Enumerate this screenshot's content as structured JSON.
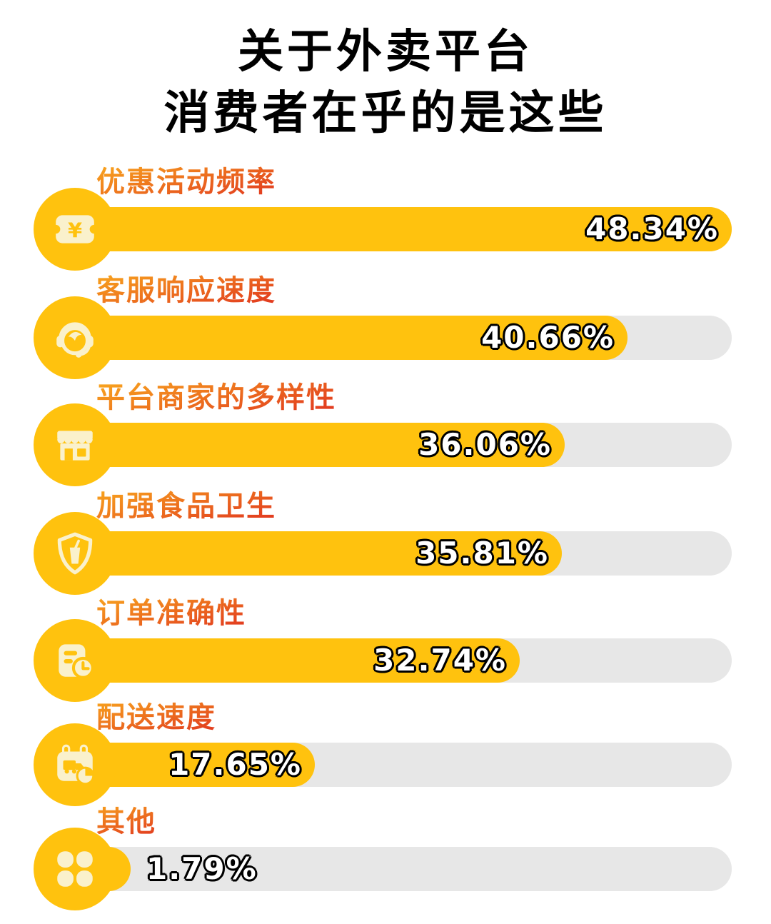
{
  "title": {
    "line1": "关于外卖平台",
    "line2": "消费者在乎的是这些"
  },
  "chart_data": {
    "type": "bar",
    "orientation": "horizontal",
    "title": "关于外卖平台 消费者在乎的是这些",
    "categories": [
      "优惠活动频率",
      "客服响应速度",
      "平台商家的多样性",
      "加强食品卫生",
      "订单准确性",
      "配送速度",
      "其他"
    ],
    "values": [
      48.34,
      40.66,
      36.06,
      35.81,
      32.74,
      17.65,
      1.79
    ],
    "value_labels": [
      "48.34%",
      "40.66%",
      "36.06%",
      "35.81%",
      "32.74%",
      "17.65%",
      "1.79%"
    ],
    "max_scale": 48.34,
    "xlabel": "",
    "ylabel": "",
    "grid": false,
    "legend": false,
    "icons": [
      "coupon-yen-icon",
      "headset-agent-icon",
      "storefront-icon",
      "shield-drink-icon",
      "order-list-clock-icon",
      "truck-calendar-icon",
      "clover-icon"
    ],
    "colors": {
      "bar_fill": "#FFC20E",
      "bar_track": "#E7E7E7",
      "icon_glyph": "#FAF1CC",
      "label_gradient_top": "#F9A91E",
      "label_gradient_bottom": "#E23B1F",
      "value_text": "#FFFFFF",
      "value_outline": "#000000",
      "title_color": "#000000"
    }
  },
  "rows": [
    {
      "label": "优惠活动频率",
      "value": 48.34,
      "value_label": "48.34%",
      "icon": "coupon-yen-icon"
    },
    {
      "label": "客服响应速度",
      "value": 40.66,
      "value_label": "40.66%",
      "icon": "headset-agent-icon"
    },
    {
      "label": "平台商家的多样性",
      "value": 36.06,
      "value_label": "36.06%",
      "icon": "storefront-icon"
    },
    {
      "label": "加强食品卫生",
      "value": 35.81,
      "value_label": "35.81%",
      "icon": "shield-drink-icon"
    },
    {
      "label": "订单准确性",
      "value": 32.74,
      "value_label": "32.74%",
      "icon": "order-list-clock-icon"
    },
    {
      "label": "配送速度",
      "value": 17.65,
      "value_label": "17.65%",
      "icon": "truck-calendar-icon"
    },
    {
      "label": "其他",
      "value": 1.79,
      "value_label": "1.79%",
      "icon": "clover-icon"
    }
  ]
}
